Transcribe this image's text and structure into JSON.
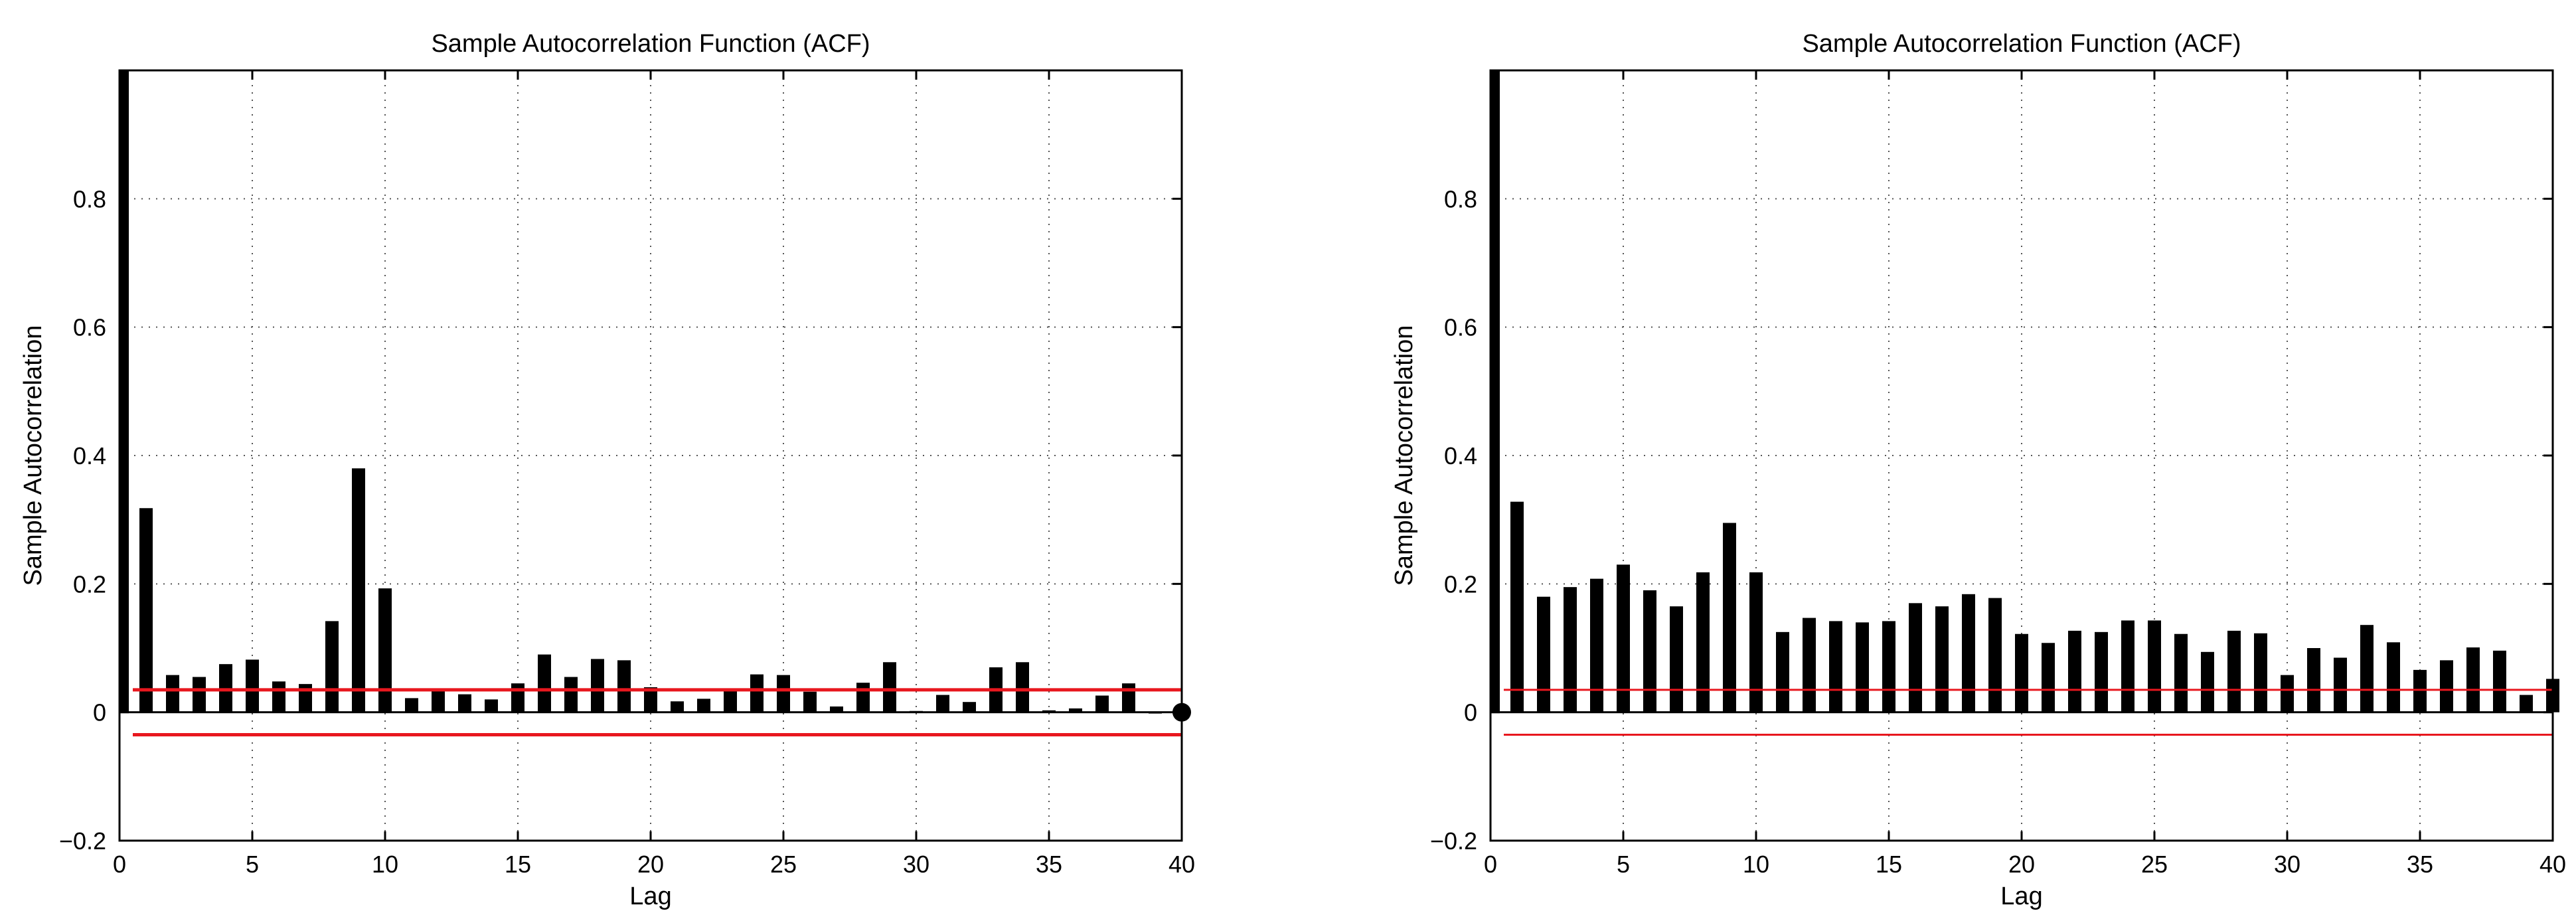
{
  "chart_data": [
    {
      "type": "bar",
      "title": "Sample Autocorrelation Function (ACF)",
      "xlabel": "Lag",
      "ylabel": "Sample Autocorrelation",
      "xlim": [
        0,
        40
      ],
      "ylim": [
        -0.2,
        1.0
      ],
      "grid": true,
      "x_ticks": [
        0,
        5,
        10,
        15,
        20,
        25,
        30,
        35,
        40
      ],
      "x_tick_labels": [
        "0",
        "5",
        "10",
        "15",
        "20",
        "25",
        "30",
        "35",
        "40"
      ],
      "y_ticks": [
        -0.2,
        0,
        0.2,
        0.4,
        0.6,
        0.8
      ],
      "y_tick_labels": [
        "−0.2",
        "0",
        "0.2",
        "0.4",
        "0.6",
        "0.8"
      ],
      "x": [
        0,
        1,
        2,
        3,
        4,
        5,
        6,
        7,
        8,
        9,
        10,
        11,
        12,
        13,
        14,
        15,
        16,
        17,
        18,
        19,
        20,
        21,
        22,
        23,
        24,
        25,
        26,
        27,
        28,
        29,
        30,
        31,
        32,
        33,
        34,
        35,
        36,
        37,
        38,
        39,
        40
      ],
      "values": [
        1.0,
        0.318,
        0.058,
        0.055,
        0.075,
        0.082,
        0.048,
        0.044,
        0.142,
        0.38,
        0.193,
        0.022,
        0.033,
        0.028,
        0.02,
        0.045,
        0.09,
        0.055,
        0.083,
        0.081,
        0.039,
        0.017,
        0.021,
        0.034,
        0.059,
        0.058,
        0.032,
        0.009,
        0.046,
        0.078,
        0.002,
        0.027,
        0.016,
        0.07,
        0.078,
        0.003,
        0.006,
        0.026,
        0.045,
        -0.002,
        0.0
      ],
      "confidence_bounds": [
        0.035,
        -0.035
      ],
      "bound_color": "#e8171e",
      "bar_color": "#000000"
    },
    {
      "type": "bar",
      "title": "Sample Autocorrelation Function (ACF)",
      "xlabel": "Lag",
      "ylabel": "Sample Autocorrelation",
      "xlim": [
        0,
        40
      ],
      "ylim": [
        -0.2,
        1.0
      ],
      "grid": true,
      "x_ticks": [
        0,
        5,
        10,
        15,
        20,
        25,
        30,
        35,
        40
      ],
      "x_tick_labels": [
        "0",
        "5",
        "10",
        "15",
        "20",
        "25",
        "30",
        "35",
        "40"
      ],
      "y_ticks": [
        -0.2,
        0,
        0.2,
        0.4,
        0.6,
        0.8
      ],
      "y_tick_labels": [
        "−0.2",
        "0",
        "0.2",
        "0.4",
        "0.6",
        "0.8"
      ],
      "x": [
        0,
        1,
        2,
        3,
        4,
        5,
        6,
        7,
        8,
        9,
        10,
        11,
        12,
        13,
        14,
        15,
        16,
        17,
        18,
        19,
        20,
        21,
        22,
        23,
        24,
        25,
        26,
        27,
        28,
        29,
        30,
        31,
        32,
        33,
        34,
        35,
        36,
        37,
        38,
        39,
        40
      ],
      "values": [
        1.0,
        0.328,
        0.18,
        0.195,
        0.208,
        0.23,
        0.19,
        0.165,
        0.218,
        0.295,
        0.218,
        0.125,
        0.147,
        0.142,
        0.14,
        0.142,
        0.17,
        0.165,
        0.184,
        0.178,
        0.122,
        0.108,
        0.127,
        0.125,
        0.143,
        0.143,
        0.122,
        0.094,
        0.127,
        0.123,
        0.058,
        0.1,
        0.085,
        0.136,
        0.109,
        0.066,
        0.081,
        0.101,
        0.096,
        0.027,
        0.052
      ],
      "confidence_bounds": [
        0.035,
        -0.035
      ],
      "bound_color": "#e8171e",
      "bar_color": "#000000"
    }
  ]
}
